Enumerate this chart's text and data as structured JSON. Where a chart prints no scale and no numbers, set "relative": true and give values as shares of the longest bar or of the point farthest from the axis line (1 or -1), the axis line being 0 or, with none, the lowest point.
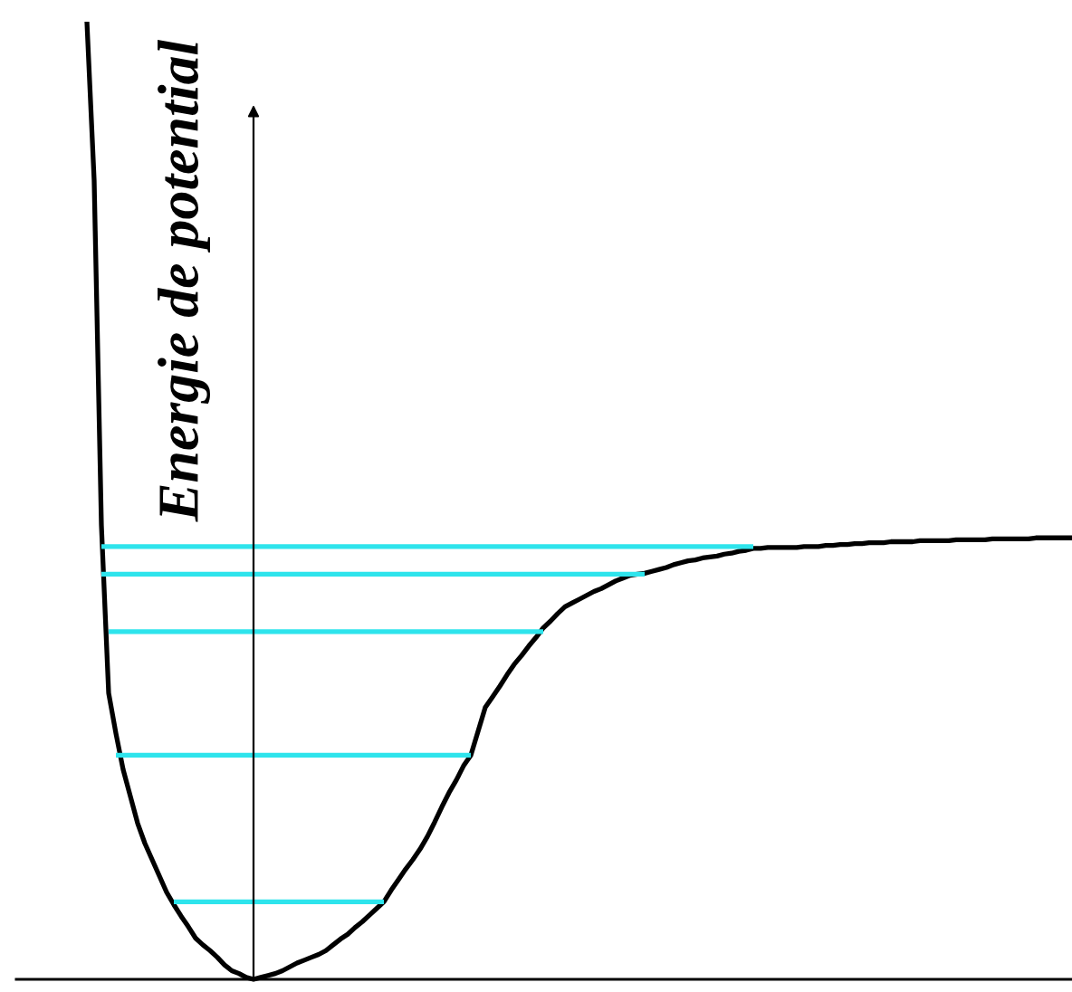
{
  "chart_data": {
    "type": "line",
    "relative": true,
    "ylabel": "Energie de potential",
    "categories": [
      null,
      null,
      null,
      null,
      null,
      null,
      null,
      null,
      null,
      null,
      null,
      null,
      null,
      null,
      null,
      null,
      null,
      null,
      null,
      null,
      null,
      null,
      null,
      null,
      null,
      null,
      null,
      null,
      null,
      null,
      null,
      null,
      null,
      null,
      null,
      null,
      null,
      null,
      null,
      null,
      null,
      null,
      null,
      null,
      null,
      null,
      null,
      null,
      null,
      null,
      null,
      null,
      null,
      null,
      null,
      null,
      null,
      null,
      null,
      null,
      null,
      null,
      null,
      null,
      null,
      null,
      null,
      null,
      null,
      null,
      null,
      null,
      null,
      null,
      null,
      null,
      null,
      null,
      null,
      null,
      null,
      null,
      null,
      null,
      null,
      null,
      null,
      null,
      null,
      null,
      null,
      null,
      null,
      null,
      null,
      null,
      null,
      null,
      null,
      null,
      null,
      null,
      null,
      null,
      null,
      null,
      null,
      null,
      null,
      null,
      null,
      null,
      null,
      null,
      null,
      null,
      null,
      null,
      null,
      null,
      null,
      null,
      null,
      null,
      null,
      null,
      null,
      null,
      null,
      null,
      null,
      null,
      null,
      null,
      null,
      null,
      null
    ],
    "series": [
      {
        "color": "#000000",
        "values": [
          1.0,
          0.834,
          0.474,
          0.299,
          0.257,
          0.219,
          0.191,
          0.163,
          0.142,
          0.125,
          0.108,
          0.091,
          0.078,
          0.066,
          0.055,
          0.043,
          0.036,
          0.03,
          0.023,
          0.015,
          0.009,
          0.006,
          0.002,
          0,
          0.002,
          0.004,
          0.006,
          0.009,
          0.013,
          0.017,
          0.02,
          0.023,
          0.026,
          0.03,
          0.036,
          0.042,
          0.047,
          0.054,
          0.06,
          0.067,
          0.074,
          0.081,
          0.093,
          0.104,
          0.115,
          0.125,
          0.136,
          0.149,
          0.164,
          0.18,
          0.195,
          0.208,
          0.223,
          0.234,
          0.259,
          0.284,
          0.295,
          0.306,
          0.318,
          0.329,
          0.338,
          0.348,
          0.357,
          0.367,
          0.374,
          0.382,
          0.389,
          0.393,
          0.397,
          0.401,
          0.405,
          0.408,
          0.412,
          0.416,
          0.419,
          0.422,
          0.423,
          0.424,
          0.426,
          0.428,
          0.43,
          0.433,
          0.435,
          0.437,
          0.438,
          0.44,
          0.441,
          0.442,
          0.444,
          0.445,
          0.447,
          0.448,
          0.45,
          0.45,
          0.451,
          0.451,
          0.451,
          0.451,
          0.451,
          0.452,
          0.452,
          0.452,
          0.453,
          0.453,
          0.454,
          0.454,
          0.455,
          0.455,
          0.456,
          0.456,
          0.456,
          0.457,
          0.457,
          0.457,
          0.457,
          0.458,
          0.458,
          0.458,
          0.458,
          0.458,
          0.459,
          0.459,
          0.459,
          0.459,
          0.459,
          0.46,
          0.46,
          0.46,
          0.46,
          0.46,
          0.46,
          0.461,
          0.461,
          0.461,
          0.461,
          0.461,
          0.461
        ]
      },
      {
        "color": "#2ee4ec",
        "values": [
          null,
          null,
          0.452,
          0.452,
          0.452,
          0.452,
          0.452,
          0.452,
          0.452,
          0.452,
          0.452,
          0.452,
          0.452,
          0.452,
          0.452,
          0.452,
          0.452,
          0.452,
          0.452,
          0.452,
          0.452,
          0.452,
          0.452,
          0.452,
          0.452,
          0.452,
          0.452,
          0.452,
          0.452,
          0.452,
          0.452,
          0.452,
          0.452,
          0.452,
          0.452,
          0.452,
          0.452,
          0.452,
          0.452,
          0.452,
          0.452,
          0.452,
          0.452,
          0.452,
          0.452,
          0.452,
          0.452,
          0.452,
          0.452,
          0.452,
          0.452,
          0.452,
          0.452,
          0.452,
          0.452,
          0.452,
          0.452,
          0.452,
          0.452,
          0.452,
          0.452,
          0.452,
          0.452,
          0.452,
          0.452,
          0.452,
          0.452,
          0.452,
          0.452,
          0.452,
          0.452,
          0.452,
          0.452,
          0.452,
          0.452,
          0.452,
          0.452,
          0.452,
          0.452,
          0.452,
          0.452,
          0.452,
          0.452,
          0.452,
          0.452,
          0.452,
          0.452,
          0.452,
          0.452,
          0.452,
          0.452,
          0.452,
          0.452,
          null,
          null,
          null,
          null,
          null,
          null,
          null,
          null,
          null,
          null,
          null,
          null,
          null,
          null,
          null,
          null,
          null,
          null,
          null,
          null,
          null,
          null,
          null,
          null,
          null,
          null,
          null,
          null,
          null,
          null,
          null,
          null,
          null,
          null,
          null,
          null,
          null,
          null,
          null,
          null,
          null,
          null,
          null,
          null
        ]
      },
      {
        "color": "#2ee4ec",
        "values": [
          null,
          null,
          0.423,
          0.423,
          0.423,
          0.423,
          0.423,
          0.423,
          0.423,
          0.423,
          0.423,
          0.423,
          0.423,
          0.423,
          0.423,
          0.423,
          0.423,
          0.423,
          0.423,
          0.423,
          0.423,
          0.423,
          0.423,
          0.423,
          0.423,
          0.423,
          0.423,
          0.423,
          0.423,
          0.423,
          0.423,
          0.423,
          0.423,
          0.423,
          0.423,
          0.423,
          0.423,
          0.423,
          0.423,
          0.423,
          0.423,
          0.423,
          0.423,
          0.423,
          0.423,
          0.423,
          0.423,
          0.423,
          0.423,
          0.423,
          0.423,
          0.423,
          0.423,
          0.423,
          0.423,
          0.423,
          0.423,
          0.423,
          0.423,
          0.423,
          0.423,
          0.423,
          0.423,
          0.423,
          0.423,
          0.423,
          0.423,
          0.423,
          0.423,
          0.423,
          0.423,
          0.423,
          0.423,
          0.423,
          0.423,
          0.423,
          0.423,
          0.423,
          null,
          null,
          null,
          null,
          null,
          null,
          null,
          null,
          null,
          null,
          null,
          null,
          null,
          null,
          null,
          null,
          null,
          null,
          null,
          null,
          null,
          null,
          null,
          null,
          null,
          null,
          null,
          null,
          null,
          null,
          null,
          null,
          null,
          null,
          null,
          null,
          null,
          null,
          null,
          null,
          null,
          null,
          null,
          null,
          null,
          null,
          null,
          null,
          null,
          null,
          null,
          null,
          null,
          null,
          null,
          null,
          null,
          null,
          null
        ]
      },
      {
        "color": "#2ee4ec",
        "values": [
          null,
          null,
          null,
          0.363,
          0.363,
          0.363,
          0.363,
          0.363,
          0.363,
          0.363,
          0.363,
          0.363,
          0.363,
          0.363,
          0.363,
          0.363,
          0.363,
          0.363,
          0.363,
          0.363,
          0.363,
          0.363,
          0.363,
          0.363,
          0.363,
          0.363,
          0.363,
          0.363,
          0.363,
          0.363,
          0.363,
          0.363,
          0.363,
          0.363,
          0.363,
          0.363,
          0.363,
          0.363,
          0.363,
          0.363,
          0.363,
          0.363,
          0.363,
          0.363,
          0.363,
          0.363,
          0.363,
          0.363,
          0.363,
          0.363,
          0.363,
          0.363,
          0.363,
          0.363,
          0.363,
          0.363,
          0.363,
          0.363,
          0.363,
          0.363,
          0.363,
          0.363,
          0.363,
          0.363,
          null,
          null,
          null,
          null,
          null,
          null,
          null,
          null,
          null,
          null,
          null,
          null,
          null,
          null,
          null,
          null,
          null,
          null,
          null,
          null,
          null,
          null,
          null,
          null,
          null,
          null,
          null,
          null,
          null,
          null,
          null,
          null,
          null,
          null,
          null,
          null,
          null,
          null,
          null,
          null,
          null,
          null,
          null,
          null,
          null,
          null,
          null,
          null,
          null,
          null,
          null,
          null,
          null,
          null,
          null,
          null,
          null,
          null,
          null,
          null,
          null,
          null,
          null,
          null,
          null,
          null,
          null,
          null,
          null,
          null,
          null,
          null,
          null
        ]
      },
      {
        "color": "#2ee4ec",
        "values": [
          null,
          null,
          null,
          null,
          0.234,
          0.234,
          0.234,
          0.234,
          0.234,
          0.234,
          0.234,
          0.234,
          0.234,
          0.234,
          0.234,
          0.234,
          0.234,
          0.234,
          0.234,
          0.234,
          0.234,
          0.234,
          0.234,
          0.234,
          0.234,
          0.234,
          0.234,
          0.234,
          0.234,
          0.234,
          0.234,
          0.234,
          0.234,
          0.234,
          0.234,
          0.234,
          0.234,
          0.234,
          0.234,
          0.234,
          0.234,
          0.234,
          0.234,
          0.234,
          0.234,
          0.234,
          0.234,
          0.234,
          0.234,
          0.234,
          0.234,
          0.234,
          0.234,
          0.234,
          null,
          null,
          null,
          null,
          null,
          null,
          null,
          null,
          null,
          null,
          null,
          null,
          null,
          null,
          null,
          null,
          null,
          null,
          null,
          null,
          null,
          null,
          null,
          null,
          null,
          null,
          null,
          null,
          null,
          null,
          null,
          null,
          null,
          null,
          null,
          null,
          null,
          null,
          null,
          null,
          null,
          null,
          null,
          null,
          null,
          null,
          null,
          null,
          null,
          null,
          null,
          null,
          null,
          null,
          null,
          null,
          null,
          null,
          null,
          null,
          null,
          null,
          null,
          null,
          null,
          null,
          null,
          null,
          null,
          null,
          null,
          null,
          null,
          null,
          null,
          null,
          null,
          null,
          null,
          null,
          null,
          null,
          null
        ]
      },
      {
        "color": "#2ee4ec",
        "values": [
          null,
          null,
          null,
          null,
          null,
          null,
          null,
          null,
          null,
          null,
          null,
          null,
          0.081,
          0.081,
          0.081,
          0.081,
          0.081,
          0.081,
          0.081,
          0.081,
          0.081,
          0.081,
          0.081,
          0.081,
          0.081,
          0.081,
          0.081,
          0.081,
          0.081,
          0.081,
          0.081,
          0.081,
          0.081,
          0.081,
          0.081,
          0.081,
          0.081,
          0.081,
          0.081,
          0.081,
          0.081,
          0.081,
          null,
          null,
          null,
          null,
          null,
          null,
          null,
          null,
          null,
          null,
          null,
          null,
          null,
          null,
          null,
          null,
          null,
          null,
          null,
          null,
          null,
          null,
          null,
          null,
          null,
          null,
          null,
          null,
          null,
          null,
          null,
          null,
          null,
          null,
          null,
          null,
          null,
          null,
          null,
          null,
          null,
          null,
          null,
          null,
          null,
          null,
          null,
          null,
          null,
          null,
          null,
          null,
          null,
          null,
          null,
          null,
          null,
          null,
          null,
          null,
          null,
          null,
          null,
          null,
          null,
          null,
          null,
          null,
          null,
          null,
          null,
          null,
          null,
          null,
          null,
          null,
          null,
          null,
          null,
          null,
          null,
          null,
          null,
          null,
          null,
          null,
          null,
          null,
          null,
          null,
          null,
          null,
          null,
          null,
          null
        ]
      }
    ]
  }
}
